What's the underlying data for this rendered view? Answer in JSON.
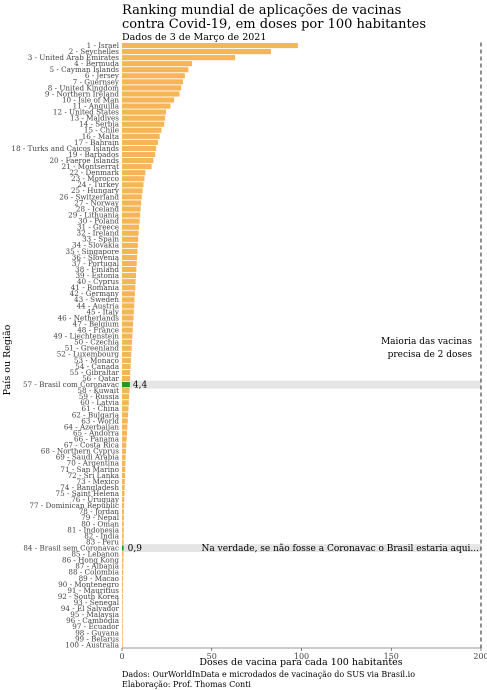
{
  "chart_data": {
    "type": "bar",
    "orientation": "horizontal",
    "title_lines": [
      "Ranking mundial de aplicações de vacinas",
      "contra Covid-19, em doses por 100 habitantes"
    ],
    "subtitle": "Dados de 3 de Março de 2021",
    "xlabel": "Doses de vacina para cada 100 habitantes",
    "ylabel": "País ou Região",
    "xlim": [
      0,
      200
    ],
    "xticks": [
      "0",
      "50",
      "100",
      "150",
      "200"
    ],
    "grid": false,
    "colors": {
      "bar": "#F6B557",
      "highlight_bar": "#1E9B1E",
      "highlight_band": "#E5E5E5",
      "reference_line": "#333333"
    },
    "categories": [
      "1 - Israel",
      "2 - Seychelles",
      "3 - United Arab Emirates",
      "4 - Bermuda",
      "5 - Cayman Islands",
      "6 - Jersey",
      "7 - Guernsey",
      "8 - United Kingdom",
      "9 - Northern Ireland",
      "10 - Isle of Man",
      "11 - Anguilla",
      "12 - United States",
      "13 - Maldives",
      "14 - Serbia",
      "15 - Chile",
      "16 - Malta",
      "17 - Bahrain",
      "18 - Turks and Caicos Islands",
      "19 - Barbados",
      "20 - Faeroe Islands",
      "21 - Montserrat",
      "22 - Denmark",
      "23 - Morocco",
      "24 - Turkey",
      "25 - Hungary",
      "26 - Switzerland",
      "27 - Norway",
      "28 - Iceland",
      "29 - Lithuania",
      "30 - Poland",
      "31 - Greece",
      "32 - Ireland",
      "33 - Spain",
      "34 - Slovakia",
      "35 - Singapore",
      "36 - Slovenia",
      "37 - Portugal",
      "38 - Finland",
      "39 - Estonia",
      "40 - Cyprus",
      "41 - Romania",
      "42 - Germany",
      "43 - Sweden",
      "44 - Austria",
      "45 - Italy",
      "46 - Netherlands",
      "47 - Belgium",
      "48 - France",
      "49 - Liechtenstein",
      "50 - Czechia",
      "51 - Greenland",
      "52 - Luxembourg",
      "53 - Monaco",
      "54 - Canada",
      "55 - Gibraltar",
      "56 - Qatar",
      "57 - Brasil com Coronavac",
      "58 - Kuwait",
      "59 - Russia",
      "60 - Latvia",
      "61 - China",
      "62 - Bulgaria",
      "63 - World",
      "64 - Azerbaijan",
      "65 - Andorra",
      "66 - Panama",
      "67 - Costa Rica",
      "68 - Northern Cyprus",
      "69 - Saudi Arabia",
      "70 - Argentina",
      "71 - San Marino",
      "72 - Sri Lanka",
      "73 - Mexico",
      "74 - Bangladesh",
      "75 - Saint Helena",
      "76 - Uruguay",
      "77 - Dominican Republic",
      "78 - Jordan",
      "79 - Nepal",
      "80 - Oman",
      "81 - Indonesia",
      "82 - India",
      "83 - Peru",
      "84 - Brasil sem Coronavac",
      "85 - Lebanon",
      "86 - Hong Kong",
      "87 - Albania",
      "88 - Colombia",
      "89 - Macao",
      "90 - Montenegro",
      "91 - Mauritius",
      "92 - South Korea",
      "93 - Senegal",
      "94 - El Salvador",
      "95 - Malaysia",
      "96 - Cambodia",
      "97 - Ecuador",
      "98 - Guyana",
      "99 - Belarus",
      "100 - Australia"
    ],
    "values": [
      98,
      83,
      63,
      39,
      37,
      35,
      34,
      33,
      32,
      29,
      27,
      24.5,
      24,
      23.5,
      22,
      21,
      20,
      19,
      18.5,
      17.5,
      16.5,
      13,
      12.5,
      12,
      11.5,
      11,
      10.7,
      10.4,
      10.1,
      9.8,
      9.5,
      9.2,
      9,
      8.8,
      8.6,
      8.4,
      8.2,
      8,
      7.8,
      7.6,
      7.4,
      7.2,
      7,
      6.8,
      6.6,
      6.4,
      6.2,
      6,
      5.8,
      5.6,
      5.4,
      5.2,
      5,
      4.8,
      4.6,
      4.5,
      4.4,
      4.2,
      4,
      3.8,
      3.6,
      3.4,
      3.2,
      3,
      2.8,
      2.6,
      2.4,
      2.2,
      2,
      1.9,
      1.8,
      1.7,
      1.6,
      1.5,
      1.4,
      1.3,
      1.2,
      1.1,
      1.05,
      1,
      0.98,
      0.95,
      0.92,
      0.9,
      0.85,
      0.8,
      0.75,
      0.7,
      0.65,
      0.6,
      0.55,
      0.5,
      0.45,
      0.4,
      0.35,
      0.3,
      0.25,
      0.2,
      0.15,
      0.1
    ],
    "highlighted": [
      {
        "category": "57 - Brasil com Coronavac",
        "value_label": "4,4"
      },
      {
        "category": "84 - Brasil sem Coronavac",
        "value_label": "0,9"
      }
    ],
    "annotations": {
      "reference_line_x": 200,
      "reference_lines": [
        "Maioria das vacinas",
        "precisa de 2 doses"
      ],
      "no_coronavac_note": "Na verdade, se não fosse a Coronavac o Brasil estaria aqui..."
    },
    "footer": [
      "Dados: OurWorldInData e microdados de vacinação do SUS via Brasil.io",
      "Elaboração: Prof. Thomas Conti"
    ]
  }
}
